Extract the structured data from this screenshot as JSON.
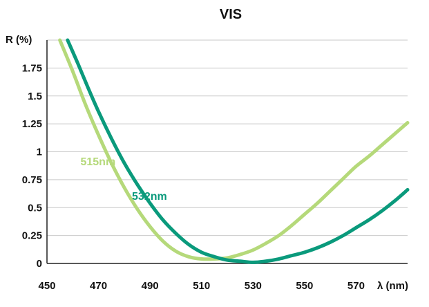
{
  "chart_data": {
    "type": "line",
    "title": "VIS",
    "xlabel": "λ (nm)",
    "ylabel": "R (%)",
    "xlim": [
      450,
      590
    ],
    "ylim": [
      0,
      2
    ],
    "x_ticks": [
      450,
      470,
      490,
      510,
      530,
      550,
      570
    ],
    "x_tick_labels": [
      "450",
      "470",
      "490",
      "510",
      "530",
      "550",
      "570"
    ],
    "y_ticks": [
      0,
      0.25,
      0.5,
      0.75,
      1,
      1.25,
      1.5,
      1.75
    ],
    "y_tick_labels": [
      "0",
      "0.25",
      "0.5",
      "0.75",
      "1",
      "1.25",
      "1.5",
      "1.75"
    ],
    "grid": true,
    "legend": "none (series labeled inline)",
    "series": [
      {
        "name": "515nm",
        "color": "#b5d97a",
        "x": [
          455,
          460,
          465,
          470,
          475,
          480,
          485,
          490,
          495,
          500,
          505,
          510,
          515,
          520,
          525,
          530,
          535,
          540,
          545,
          550,
          555,
          560,
          565,
          570,
          575,
          580,
          585,
          590
        ],
        "y": [
          2.0,
          1.72,
          1.42,
          1.15,
          0.9,
          0.68,
          0.49,
          0.33,
          0.2,
          0.11,
          0.06,
          0.04,
          0.04,
          0.05,
          0.08,
          0.12,
          0.18,
          0.25,
          0.34,
          0.44,
          0.54,
          0.65,
          0.76,
          0.87,
          0.96,
          1.06,
          1.16,
          1.26
        ]
      },
      {
        "name": "532nm",
        "color": "#0a9a7c",
        "x": [
          458,
          462,
          466,
          470,
          475,
          480,
          485,
          490,
          495,
          500,
          505,
          510,
          515,
          520,
          525,
          530,
          535,
          540,
          545,
          550,
          555,
          560,
          565,
          570,
          575,
          580,
          585,
          590
        ],
        "y": [
          2.0,
          1.79,
          1.57,
          1.36,
          1.12,
          0.9,
          0.71,
          0.54,
          0.39,
          0.27,
          0.17,
          0.1,
          0.06,
          0.03,
          0.02,
          0.01,
          0.02,
          0.04,
          0.07,
          0.1,
          0.14,
          0.19,
          0.25,
          0.32,
          0.39,
          0.47,
          0.56,
          0.66
        ]
      }
    ],
    "annotations": [
      {
        "text": "515nm",
        "x": 463,
        "y": 0.88,
        "color": "#b5d97a"
      },
      {
        "text": "532nm",
        "x": 483,
        "y": 0.57,
        "color": "#0a9a7c"
      }
    ]
  }
}
